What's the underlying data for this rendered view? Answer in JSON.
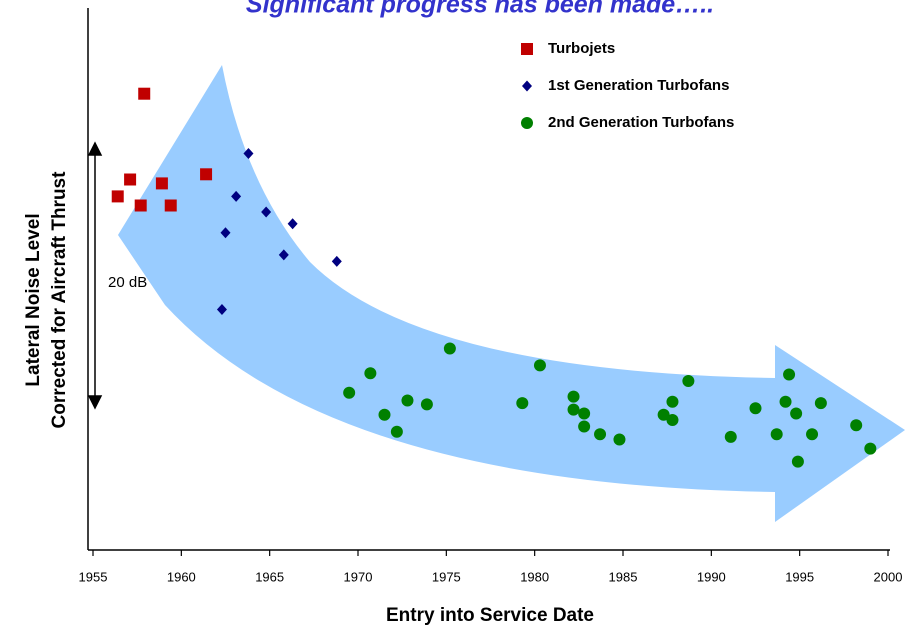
{
  "chart_data": {
    "type": "scatter",
    "title": "Significant progress has been made…..",
    "xlabel": "Entry into Service Date",
    "ylabel": [
      "Lateral Noise Level",
      "Corrected for Aircraft Thrust"
    ],
    "annotations": [
      "20 dB"
    ],
    "xlim": [
      1955,
      2000
    ],
    "xticks": [
      1955,
      1960,
      1965,
      1970,
      1975,
      1980,
      1985,
      1990,
      1995,
      2000
    ],
    "ylim": [
      0,
      40
    ],
    "legend": "top-right",
    "series": [
      {
        "name": "Turbojets",
        "color": "#c00000",
        "marker": "square",
        "x": [
          1956.4,
          1957.1,
          1957.7,
          1957.9,
          1958.9,
          1959.4,
          1961.4
        ],
        "values": [
          27.2,
          28.5,
          26.5,
          35.1,
          28.2,
          26.5,
          28.9
        ]
      },
      {
        "name": "1st Generation Turbofans",
        "color": "#000080",
        "marker": "diamond",
        "x": [
          1963.8,
          1963.1,
          1962.5,
          1964.8,
          1966.3,
          1965.8,
          1968.8,
          1962.3
        ],
        "values": [
          30.5,
          27.2,
          24.4,
          26.0,
          25.1,
          22.7,
          22.2,
          18.5
        ]
      },
      {
        "name": "2nd Generation Turbofans",
        "color": "#008000",
        "marker": "circle",
        "x": [
          1969.5,
          1970.7,
          1971.5,
          1972.2,
          1972.8,
          1973.9,
          1975.2,
          1979.3,
          1980.3,
          1982.2,
          1982.2,
          1982.8,
          1982.8,
          1983.7,
          1984.8,
          1987.3,
          1987.8,
          1987.8,
          1988.7,
          1991.1,
          1992.5,
          1993.7,
          1994.2,
          1994.4,
          1994.8,
          1994.9,
          1995.7,
          1996.2,
          1998.2,
          1999.0
        ],
        "values": [
          12.1,
          13.6,
          10.4,
          9.1,
          11.5,
          11.2,
          15.5,
          11.3,
          14.2,
          11.8,
          10.8,
          10.5,
          9.5,
          8.9,
          8.5,
          10.4,
          11.4,
          10.0,
          13.0,
          8.7,
          10.9,
          8.9,
          11.4,
          13.5,
          10.5,
          6.8,
          8.9,
          11.3,
          9.6,
          7.8
        ]
      }
    ]
  }
}
